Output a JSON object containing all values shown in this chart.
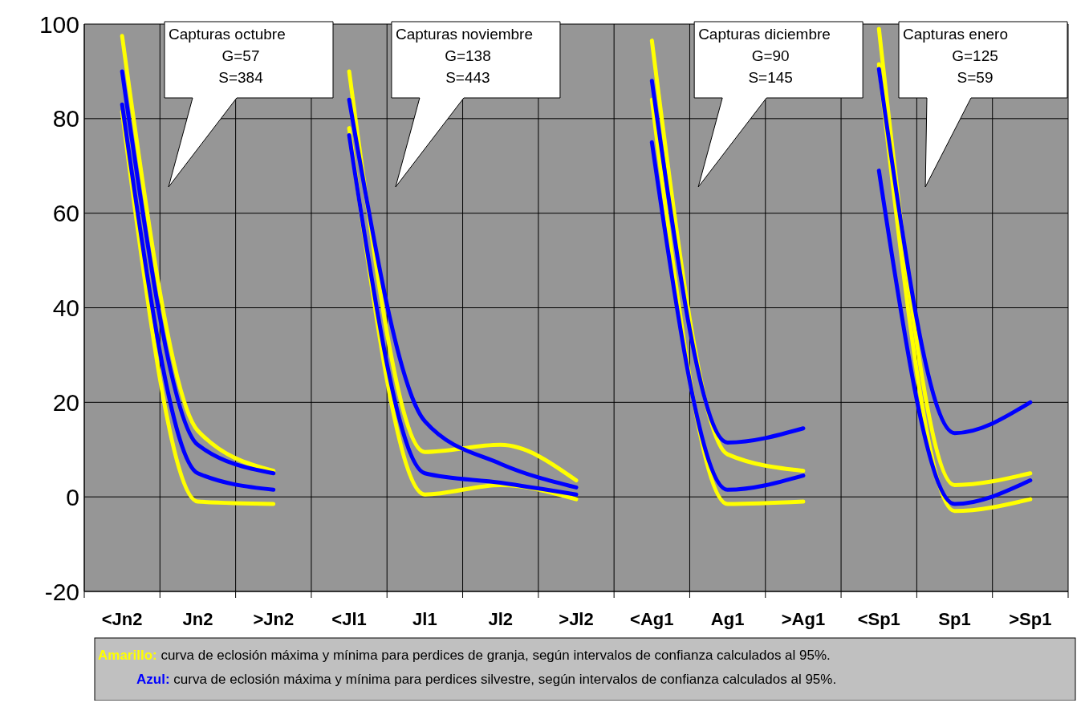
{
  "chart_data": {
    "type": "line",
    "categories": [
      "<Jn2",
      "Jn2",
      ">Jn2",
      "<Jl1",
      "Jl1",
      "Jl2",
      ">Jl2",
      "<Ag1",
      "Ag1",
      ">Ag1",
      "<Sp1",
      "Sp1",
      ">Sp1"
    ],
    "series": [
      {
        "color": "#ffff00",
        "values": [
          97.5,
          14,
          5.5,
          90,
          9.5,
          11,
          3.5,
          96.5,
          9,
          5.5,
          99,
          2.5,
          5
        ]
      },
      {
        "color": "#ffff00",
        "values": [
          81.5,
          -1,
          -1.5,
          78,
          0.5,
          2.5,
          -0.5,
          84,
          -1.5,
          -1,
          91.5,
          -3,
          -0.5
        ]
      },
      {
        "color": "#0000ff",
        "values": [
          90,
          11,
          5,
          84,
          16,
          7,
          2,
          88,
          11.5,
          14.5,
          90.5,
          13.5,
          20
        ]
      },
      {
        "color": "#0000ff",
        "values": [
          83,
          5,
          1.5,
          76.5,
          5,
          3,
          0.5,
          75,
          1.5,
          4.5,
          69,
          -1.5,
          3.5
        ]
      }
    ],
    "ylim": [
      -20,
      100
    ],
    "yticks": [
      -20,
      0,
      20,
      40,
      60,
      80,
      100
    ],
    "grid": true,
    "line_style": "solid",
    "marker": "none",
    "annotations": [
      "Capturas octubre\nG=57\nS=384",
      "Capturas noviembre\nG=138\nS=443",
      "Capturas diciembre\nG=90\nS=145",
      "Capturas enero\nG=125\nS=59",
      "Amarillo: curva de eclosión máxima y mínima para perdices de granja, según intervalos de confianza calculados al 95%.",
      "Azul: curva de eclosión máxima y mínima para perdices silvestre, según intervalos de confianza calculados al 95%."
    ]
  }
}
